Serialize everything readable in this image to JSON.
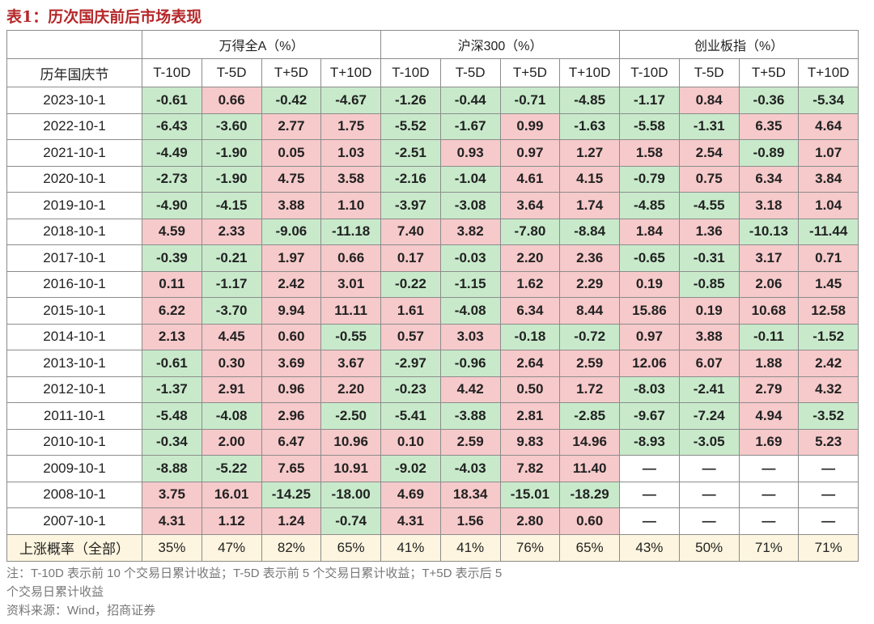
{
  "title": "表1：历次国庆前后市场表现",
  "table": {
    "header_groups": [
      "万得全A（%）",
      "沪深300（%）",
      "创业板指（%）"
    ],
    "row_header_label": "历年国庆节",
    "columns": [
      "T-10D",
      "T-5D",
      "T+5D",
      "T+10D"
    ],
    "rows": [
      {
        "date": "2023-10-1",
        "values": [
          "-0.61",
          "0.66",
          "-0.42",
          "-4.67",
          "-1.26",
          "-0.44",
          "-0.71",
          "-4.85",
          "-1.17",
          "0.84",
          "-0.36",
          "-5.34"
        ]
      },
      {
        "date": "2022-10-1",
        "values": [
          "-6.43",
          "-3.60",
          "2.77",
          "1.75",
          "-5.52",
          "-1.67",
          "0.99",
          "-1.63",
          "-5.58",
          "-1.31",
          "6.35",
          "4.64"
        ]
      },
      {
        "date": "2021-10-1",
        "values": [
          "-4.49",
          "-1.90",
          "0.05",
          "1.03",
          "-2.51",
          "0.93",
          "0.97",
          "1.27",
          "1.58",
          "2.54",
          "-0.89",
          "1.07"
        ]
      },
      {
        "date": "2020-10-1",
        "values": [
          "-2.73",
          "-1.90",
          "4.75",
          "3.58",
          "-2.16",
          "-1.04",
          "4.61",
          "4.15",
          "-0.79",
          "0.75",
          "6.34",
          "3.84"
        ]
      },
      {
        "date": "2019-10-1",
        "values": [
          "-4.90",
          "-4.15",
          "3.88",
          "1.10",
          "-3.97",
          "-3.08",
          "3.64",
          "1.74",
          "-4.85",
          "-4.55",
          "3.18",
          "1.04"
        ]
      },
      {
        "date": "2018-10-1",
        "values": [
          "4.59",
          "2.33",
          "-9.06",
          "-11.18",
          "7.40",
          "3.82",
          "-7.80",
          "-8.84",
          "1.84",
          "1.36",
          "-10.13",
          "-11.44"
        ]
      },
      {
        "date": "2017-10-1",
        "values": [
          "-0.39",
          "-0.21",
          "1.97",
          "0.66",
          "0.17",
          "-0.03",
          "2.20",
          "2.36",
          "-0.65",
          "-0.31",
          "3.17",
          "0.71"
        ]
      },
      {
        "date": "2016-10-1",
        "values": [
          "0.11",
          "-1.17",
          "2.42",
          "3.01",
          "-0.22",
          "-1.15",
          "1.62",
          "2.29",
          "0.19",
          "-0.85",
          "2.06",
          "1.45"
        ]
      },
      {
        "date": "2015-10-1",
        "values": [
          "6.22",
          "-3.70",
          "9.94",
          "11.11",
          "1.61",
          "-4.08",
          "6.34",
          "8.44",
          "15.86",
          "0.19",
          "10.68",
          "12.58"
        ]
      },
      {
        "date": "2014-10-1",
        "values": [
          "2.13",
          "4.45",
          "0.60",
          "-0.55",
          "0.57",
          "3.03",
          "-0.18",
          "-0.72",
          "0.97",
          "3.88",
          "-0.11",
          "-1.52"
        ]
      },
      {
        "date": "2013-10-1",
        "values": [
          "-0.61",
          "0.30",
          "3.69",
          "3.67",
          "-2.97",
          "-0.96",
          "2.64",
          "2.59",
          "12.06",
          "6.07",
          "1.88",
          "2.42"
        ]
      },
      {
        "date": "2012-10-1",
        "values": [
          "-1.37",
          "2.91",
          "0.96",
          "2.20",
          "-0.23",
          "4.42",
          "0.50",
          "1.72",
          "-8.03",
          "-2.41",
          "2.79",
          "4.32"
        ]
      },
      {
        "date": "2011-10-1",
        "values": [
          "-5.48",
          "-4.08",
          "2.96",
          "-2.50",
          "-5.41",
          "-3.88",
          "2.81",
          "-2.85",
          "-9.67",
          "-7.24",
          "4.94",
          "-3.52"
        ]
      },
      {
        "date": "2010-10-1",
        "values": [
          "-0.34",
          "2.00",
          "6.47",
          "10.96",
          "0.10",
          "2.59",
          "9.83",
          "14.96",
          "-8.93",
          "-3.05",
          "1.69",
          "5.23"
        ]
      },
      {
        "date": "2009-10-1",
        "values": [
          "-8.88",
          "-5.22",
          "7.65",
          "10.91",
          "-9.02",
          "-4.03",
          "7.82",
          "11.40",
          "—",
          "—",
          "—",
          "—"
        ]
      },
      {
        "date": "2008-10-1",
        "values": [
          "3.75",
          "16.01",
          "-14.25",
          "-18.00",
          "4.69",
          "18.34",
          "-15.01",
          "-18.29",
          "—",
          "—",
          "—",
          "—"
        ]
      },
      {
        "date": "2007-10-1",
        "values": [
          "4.31",
          "1.12",
          "1.24",
          "-0.74",
          "4.31",
          "1.56",
          "2.80",
          "0.60",
          "—",
          "—",
          "—",
          "—"
        ]
      }
    ],
    "summary": {
      "label": "上涨概率（全部）",
      "values": [
        "35%",
        "47%",
        "82%",
        "65%",
        "41%",
        "41%",
        "76%",
        "65%",
        "43%",
        "50%",
        "71%",
        "71%"
      ]
    }
  },
  "notes": [
    "注：T-10D 表示前 10 个交易日累计收益；T-5D 表示前 5 个交易日累计收益；T+5D 表示后 5",
    "个交易日累计收益"
  ],
  "source": "资料来源：Wind，招商证券"
}
